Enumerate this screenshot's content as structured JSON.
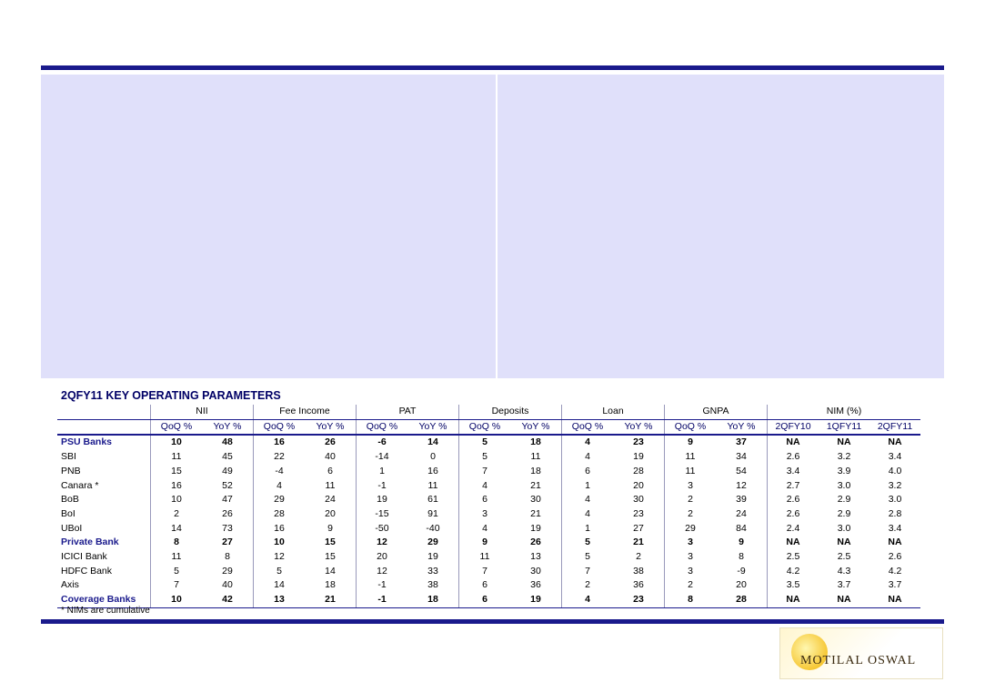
{
  "table": {
    "title": "2QFY11 KEY OPERATING PARAMETERS",
    "groups": [
      "NII",
      "Fee Income",
      "PAT",
      "Deposits",
      "Loan",
      "GNPA",
      "NIM (%)"
    ],
    "subheaders": [
      "QoQ %",
      "YoY %",
      "QoQ %",
      "YoY %",
      "QoQ %",
      "YoY %",
      "QoQ %",
      "YoY %",
      "QoQ %",
      "YoY %",
      "QoQ %",
      "YoY %",
      "2QFY10",
      "1QFY11",
      "2QFY11"
    ],
    "rows": [
      {
        "label": "PSU Banks",
        "summary": true,
        "cells": [
          "10",
          "48",
          "16",
          "26",
          "-6",
          "14",
          "5",
          "18",
          "4",
          "23",
          "9",
          "37",
          "NA",
          "NA",
          "NA"
        ]
      },
      {
        "label": "SBI",
        "cells": [
          "11",
          "45",
          "22",
          "40",
          "-14",
          "0",
          "5",
          "11",
          "4",
          "19",
          "11",
          "34",
          "2.6",
          "3.2",
          "3.4"
        ]
      },
      {
        "label": "PNB",
        "cells": [
          "15",
          "49",
          "-4",
          "6",
          "1",
          "16",
          "7",
          "18",
          "6",
          "28",
          "11",
          "54",
          "3.4",
          "3.9",
          "4.0"
        ]
      },
      {
        "label": "Canara *",
        "cells": [
          "16",
          "52",
          "4",
          "11",
          "-1",
          "11",
          "4",
          "21",
          "1",
          "20",
          "3",
          "12",
          "2.7",
          "3.0",
          "3.2"
        ]
      },
      {
        "label": "BoB",
        "cells": [
          "10",
          "47",
          "29",
          "24",
          "19",
          "61",
          "6",
          "30",
          "4",
          "30",
          "2",
          "39",
          "2.6",
          "2.9",
          "3.0"
        ]
      },
      {
        "label": "BoI",
        "cells": [
          "2",
          "26",
          "28",
          "20",
          "-15",
          "91",
          "3",
          "21",
          "4",
          "23",
          "2",
          "24",
          "2.6",
          "2.9",
          "2.8"
        ]
      },
      {
        "label": "UBoI",
        "cells": [
          "14",
          "73",
          "16",
          "9",
          "-50",
          "-40",
          "4",
          "19",
          "1",
          "27",
          "29",
          "84",
          "2.4",
          "3.0",
          "3.4"
        ]
      },
      {
        "label": "Private Bank",
        "summary": true,
        "cells": [
          "8",
          "27",
          "10",
          "15",
          "12",
          "29",
          "9",
          "26",
          "5",
          "21",
          "3",
          "9",
          "NA",
          "NA",
          "NA"
        ]
      },
      {
        "label": "ICICI Bank",
        "cells": [
          "11",
          "8",
          "12",
          "15",
          "20",
          "19",
          "11",
          "13",
          "5",
          "2",
          "3",
          "8",
          "2.5",
          "2.5",
          "2.6"
        ]
      },
      {
        "label": "HDFC Bank",
        "cells": [
          "5",
          "29",
          "5",
          "14",
          "12",
          "33",
          "7",
          "30",
          "7",
          "38",
          "3",
          "-9",
          "4.2",
          "4.3",
          "4.2"
        ]
      },
      {
        "label": "Axis",
        "cells": [
          "7",
          "40",
          "14",
          "18",
          "-1",
          "38",
          "6",
          "36",
          "2",
          "36",
          "2",
          "20",
          "3.5",
          "3.7",
          "3.7"
        ]
      },
      {
        "label": "Coverage Banks",
        "summary": true,
        "cells": [
          "10",
          "42",
          "13",
          "21",
          "-1",
          "18",
          "6",
          "19",
          "4",
          "23",
          "8",
          "28",
          "NA",
          "NA",
          "NA"
        ]
      }
    ],
    "footnote": "* NIMs are cumulative"
  },
  "logo": {
    "text": "MOTILAL OSWAL"
  }
}
